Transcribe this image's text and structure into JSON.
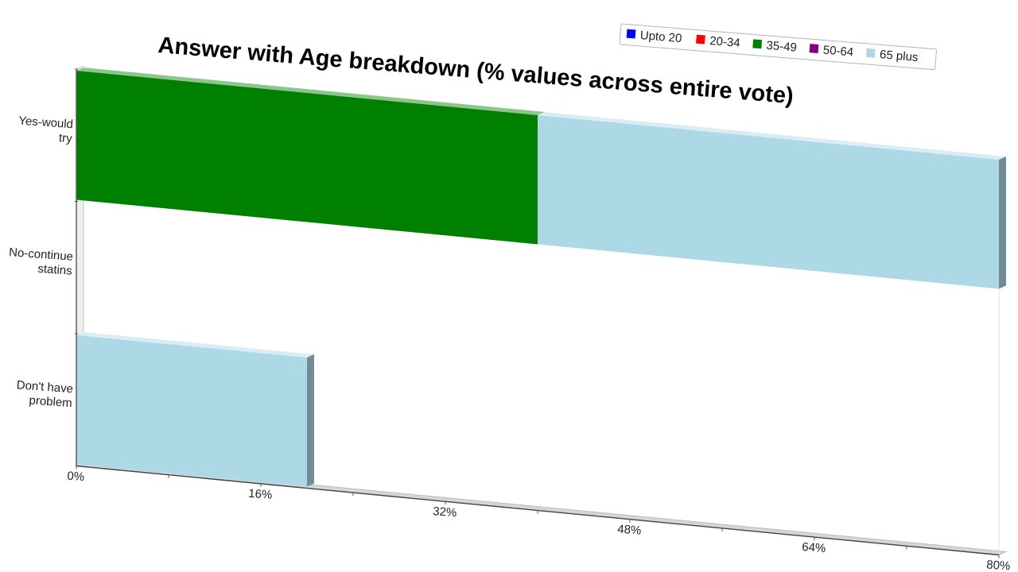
{
  "chart_data": {
    "type": "bar",
    "orientation": "horizontal",
    "stacked": true,
    "title": "Answer with Age breakdown (% values across entire vote)",
    "categories": [
      "Yes-would try",
      "No-continue statins",
      "Don't have problem"
    ],
    "series": [
      {
        "name": "Upto 20",
        "color": "#0000ff",
        "values": [
          0,
          0,
          0
        ]
      },
      {
        "name": "20-34",
        "color": "#ff0000",
        "values": [
          0,
          0,
          0
        ]
      },
      {
        "name": "35-49",
        "color": "#008000",
        "values": [
          40,
          0,
          0
        ]
      },
      {
        "name": "50-64",
        "color": "#800080",
        "values": [
          0,
          0,
          0
        ]
      },
      {
        "name": "65 plus",
        "color": "#add8e6",
        "values": [
          40,
          0,
          20
        ]
      }
    ],
    "xlim": [
      0,
      80
    ],
    "xticks": [
      "0%",
      "16%",
      "32%",
      "48%",
      "64%",
      "80%"
    ],
    "xlabel": "",
    "ylabel": "",
    "legend_position": "top-right",
    "grid": false
  }
}
